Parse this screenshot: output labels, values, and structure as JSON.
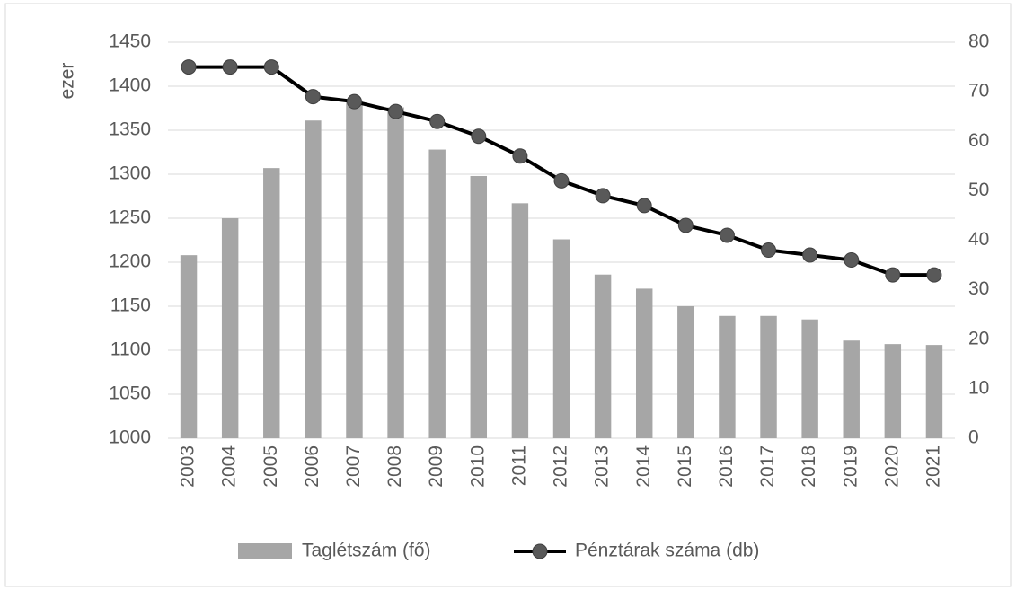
{
  "chart_data": {
    "type": "bar",
    "categories": [
      "2003",
      "2004",
      "2005",
      "2006",
      "2007",
      "2008",
      "2009",
      "2010",
      "2011",
      "2012",
      "2013",
      "2014",
      "2015",
      "2016",
      "2017",
      "2018",
      "2019",
      "2020",
      "2021"
    ],
    "y_label": "ezer",
    "series": [
      {
        "name": "Taglétszám (fő)",
        "type": "bar",
        "color": "#a6a6a6",
        "axis": "y",
        "values": [
          1208,
          1250,
          1307,
          1361,
          1384,
          1376,
          1328,
          1298,
          1267,
          1226,
          1186,
          1170,
          1150,
          1139,
          1139,
          1135,
          1111,
          1107,
          1106
        ]
      },
      {
        "name": "Pénztárak száma (db)",
        "type": "line",
        "color": "#000000",
        "marker_color": "#595959",
        "axis": "y2",
        "values": [
          75,
          75,
          75,
          69,
          68,
          66,
          64,
          61,
          57,
          52,
          49,
          47,
          43,
          41,
          38,
          37,
          36,
          33,
          33
        ]
      }
    ],
    "ylim": [
      1000,
      1450
    ],
    "yticks": [
      1000,
      1050,
      1100,
      1150,
      1200,
      1250,
      1300,
      1350,
      1400,
      1450
    ],
    "y2lim": [
      0,
      80
    ],
    "y2ticks": [
      0,
      10,
      20,
      30,
      40,
      50,
      60,
      70,
      80
    ],
    "grid": true,
    "legend": "bottom"
  }
}
